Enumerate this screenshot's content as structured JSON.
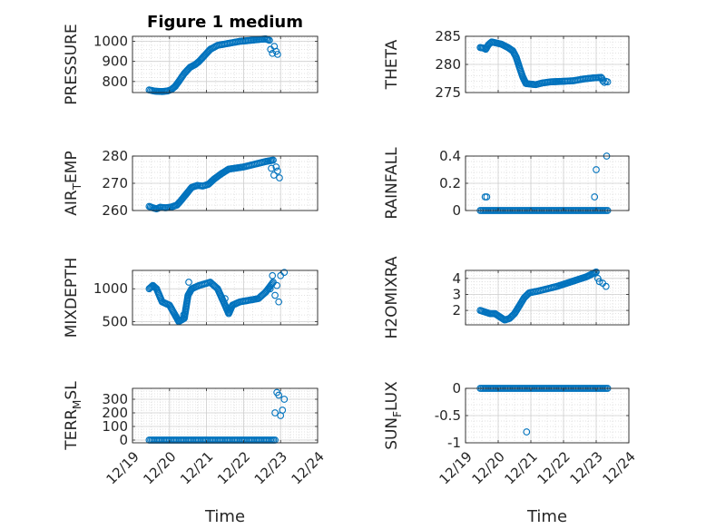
{
  "figure": {
    "title": "Figure 1 medium",
    "marker_color": "#0072BD"
  },
  "chart_data": [
    {
      "type": "scatter",
      "title": "Figure 1 medium",
      "ylabel_main": "PRESSURE",
      "ylabel_sub": "",
      "xlim": [
        0,
        5
      ],
      "ylim": [
        745,
        1025
      ],
      "yticks": [
        800,
        900,
        1000
      ],
      "ytick_labels": [
        "800",
        "900",
        "1000"
      ],
      "xticks": [
        0,
        1,
        2,
        3,
        4,
        5
      ],
      "xtick_labels": [
        "12/19",
        "12/20",
        "12/21",
        "12/22",
        "12/23",
        "12/24"
      ],
      "xlabel": "",
      "grid": true,
      "line": [
        [
          0.45,
          758
        ],
        [
          0.6,
          752
        ],
        [
          0.8,
          750
        ],
        [
          0.95,
          753
        ],
        [
          1.05,
          760
        ],
        [
          1.15,
          775
        ],
        [
          1.25,
          800
        ],
        [
          1.4,
          840
        ],
        [
          1.55,
          870
        ],
        [
          1.7,
          885
        ],
        [
          1.8,
          900
        ],
        [
          1.95,
          930
        ],
        [
          2.1,
          960
        ],
        [
          2.3,
          980
        ],
        [
          2.6,
          990
        ],
        [
          2.9,
          1000
        ],
        [
          3.2,
          1005
        ],
        [
          3.45,
          1010
        ],
        [
          3.6,
          1012
        ],
        [
          3.7,
          1005
        ]
      ],
      "extra": [
        [
          3.73,
          960
        ],
        [
          3.78,
          940
        ],
        [
          3.83,
          975
        ],
        [
          3.88,
          950
        ],
        [
          3.92,
          935
        ]
      ]
    },
    {
      "type": "scatter",
      "title": "",
      "ylabel_main": "THETA",
      "ylabel_sub": "",
      "xlim": [
        0,
        5
      ],
      "ylim": [
        275,
        285
      ],
      "yticks": [
        275,
        280,
        285
      ],
      "ytick_labels": [
        "275",
        "280",
        "285"
      ],
      "xticks": [
        0,
        1,
        2,
        3,
        4,
        5
      ],
      "xtick_labels": [
        "12/19",
        "12/20",
        "12/21",
        "12/22",
        "12/23",
        "12/24"
      ],
      "xlabel": "",
      "grid": true,
      "line": [
        [
          0.45,
          283.0
        ],
        [
          0.55,
          282.9
        ],
        [
          0.62,
          282.7
        ],
        [
          0.7,
          283.5
        ],
        [
          0.8,
          284.0
        ],
        [
          0.95,
          283.8
        ],
        [
          1.1,
          283.6
        ],
        [
          1.3,
          283.0
        ],
        [
          1.45,
          282.4
        ],
        [
          1.55,
          281.3
        ],
        [
          1.65,
          279.5
        ],
        [
          1.75,
          277.8
        ],
        [
          1.85,
          276.6
        ],
        [
          2.0,
          276.5
        ],
        [
          2.15,
          276.4
        ],
        [
          2.35,
          276.7
        ],
        [
          2.6,
          276.9
        ],
        [
          3.0,
          277.0
        ],
        [
          3.3,
          277.1
        ],
        [
          3.6,
          277.4
        ],
        [
          3.9,
          277.6
        ],
        [
          4.15,
          277.7
        ]
      ],
      "extra": [
        [
          4.18,
          277.5
        ],
        [
          4.2,
          277.1
        ],
        [
          4.25,
          276.8
        ],
        [
          4.3,
          277.0
        ],
        [
          4.35,
          276.9
        ]
      ]
    },
    {
      "type": "scatter",
      "title": "",
      "ylabel_main": "AIR",
      "ylabel_sub": "T",
      "ylabel_tail": "EMP",
      "xlim": [
        0,
        5
      ],
      "ylim": [
        260,
        280
      ],
      "yticks": [
        260,
        270,
        280
      ],
      "ytick_labels": [
        "260",
        "270",
        "280"
      ],
      "xticks": [
        0,
        1,
        2,
        3,
        4,
        5
      ],
      "xtick_labels": [
        "12/19",
        "12/20",
        "12/21",
        "12/22",
        "12/23",
        "12/24"
      ],
      "xlabel": "",
      "grid": true,
      "line": [
        [
          0.45,
          261.5
        ],
        [
          0.55,
          261.0
        ],
        [
          0.65,
          260.6
        ],
        [
          0.75,
          261.2
        ],
        [
          0.9,
          261.0
        ],
        [
          1.05,
          261.3
        ],
        [
          1.2,
          262.0
        ],
        [
          1.3,
          263.5
        ],
        [
          1.45,
          266.0
        ],
        [
          1.6,
          268.5
        ],
        [
          1.75,
          269.2
        ],
        [
          1.9,
          269.0
        ],
        [
          2.05,
          269.6
        ],
        [
          2.2,
          271.5
        ],
        [
          2.4,
          273.5
        ],
        [
          2.6,
          275.2
        ],
        [
          2.8,
          275.6
        ],
        [
          3.0,
          276.0
        ],
        [
          3.3,
          277.0
        ],
        [
          3.6,
          278.0
        ],
        [
          3.8,
          278.5
        ]
      ],
      "extra": [
        [
          3.75,
          275.5
        ],
        [
          3.82,
          273.0
        ],
        [
          3.88,
          276.0
        ],
        [
          3.92,
          274.5
        ],
        [
          3.97,
          272.0
        ]
      ]
    },
    {
      "type": "scatter",
      "title": "",
      "ylabel_main": "RAINFALL",
      "ylabel_sub": "",
      "xlim": [
        0,
        5
      ],
      "ylim": [
        0,
        0.4
      ],
      "yticks": [
        0,
        0.2,
        0.4
      ],
      "ytick_labels": [
        "0",
        "0.2",
        "0.4"
      ],
      "xticks": [
        0,
        1,
        2,
        3,
        4,
        5
      ],
      "xtick_labels": [
        "12/19",
        "12/20",
        "12/21",
        "12/22",
        "12/23",
        "12/24"
      ],
      "xlabel": "",
      "grid": true,
      "line": [
        [
          0.45,
          0
        ],
        [
          4.35,
          0
        ]
      ],
      "extra": [
        [
          0.6,
          0.1
        ],
        [
          0.65,
          0.1
        ],
        [
          3.95,
          0.1
        ],
        [
          4.0,
          0.3
        ],
        [
          4.32,
          0.4
        ]
      ]
    },
    {
      "type": "scatter",
      "title": "",
      "ylabel_main": "MIXDEPTH",
      "ylabel_sub": "",
      "xlim": [
        0,
        5
      ],
      "ylim": [
        450,
        1280
      ],
      "yticks": [
        500,
        1000
      ],
      "ytick_labels": [
        "500",
        "1000"
      ],
      "xticks": [
        0,
        1,
        2,
        3,
        4,
        5
      ],
      "xtick_labels": [
        "12/19",
        "12/20",
        "12/21",
        "12/22",
        "12/23",
        "12/24"
      ],
      "xlabel": "",
      "grid": true,
      "line": [
        [
          0.45,
          1000
        ],
        [
          0.55,
          1050
        ],
        [
          0.65,
          1000
        ],
        [
          0.8,
          800
        ],
        [
          1.0,
          750
        ],
        [
          1.15,
          600
        ],
        [
          1.25,
          500
        ],
        [
          1.4,
          550
        ],
        [
          1.5,
          900
        ],
        [
          1.6,
          1000
        ],
        [
          1.8,
          1050
        ],
        [
          2.1,
          1100
        ],
        [
          2.3,
          1000
        ],
        [
          2.5,
          750
        ],
        [
          2.6,
          620
        ],
        [
          2.7,
          750
        ],
        [
          2.9,
          800
        ],
        [
          3.2,
          830
        ],
        [
          3.4,
          850
        ],
        [
          3.6,
          950
        ],
        [
          3.8,
          1100
        ]
      ],
      "extra": [
        [
          1.38,
          600
        ],
        [
          1.52,
          1100
        ],
        [
          2.5,
          850
        ],
        [
          3.72,
          1000
        ],
        [
          3.78,
          1200
        ],
        [
          3.85,
          900
        ],
        [
          3.9,
          1050
        ],
        [
          3.95,
          800
        ],
        [
          4.0,
          1200
        ],
        [
          4.1,
          1250
        ]
      ]
    },
    {
      "type": "scatter",
      "title": "",
      "ylabel_main": "H2OMIXRA",
      "ylabel_sub": "",
      "xlim": [
        0,
        5
      ],
      "ylim": [
        1.1,
        4.5
      ],
      "yticks": [
        2,
        3,
        4
      ],
      "ytick_labels": [
        "2",
        "3",
        "4"
      ],
      "xticks": [
        0,
        1,
        2,
        3,
        4,
        5
      ],
      "xtick_labels": [
        "12/19",
        "12/20",
        "12/21",
        "12/22",
        "12/23",
        "12/24"
      ],
      "xlabel": "",
      "grid": true,
      "line": [
        [
          0.45,
          2.0
        ],
        [
          0.6,
          1.9
        ],
        [
          0.75,
          1.8
        ],
        [
          0.9,
          1.8
        ],
        [
          1.05,
          1.6
        ],
        [
          1.2,
          1.4
        ],
        [
          1.35,
          1.5
        ],
        [
          1.5,
          1.8
        ],
        [
          1.65,
          2.3
        ],
        [
          1.8,
          2.8
        ],
        [
          1.95,
          3.1
        ],
        [
          2.2,
          3.2
        ],
        [
          2.5,
          3.35
        ],
        [
          2.8,
          3.5
        ],
        [
          3.1,
          3.7
        ],
        [
          3.4,
          3.9
        ],
        [
          3.7,
          4.1
        ],
        [
          3.9,
          4.3
        ],
        [
          4.0,
          4.4
        ]
      ],
      "extra": [
        [
          4.05,
          4.0
        ],
        [
          4.1,
          3.8
        ],
        [
          4.2,
          3.7
        ],
        [
          4.3,
          3.5
        ]
      ]
    },
    {
      "type": "scatter",
      "title": "",
      "ylabel_main": "TERR",
      "ylabel_sub": "M",
      "ylabel_tail": "SL",
      "xlim": [
        0,
        5
      ],
      "ylim": [
        -20,
        380
      ],
      "yticks": [
        0,
        100,
        200,
        300
      ],
      "ytick_labels": [
        "0",
        "100",
        "200",
        "300"
      ],
      "xticks": [
        0,
        1,
        2,
        3,
        4,
        5
      ],
      "xtick_labels": [
        "12/19",
        "12/20",
        "12/21",
        "12/22",
        "12/23",
        "12/24"
      ],
      "xlabel": "Time",
      "grid": true,
      "line": [
        [
          0.45,
          0
        ],
        [
          3.85,
          0
        ]
      ],
      "extra": [
        [
          3.85,
          200
        ],
        [
          3.9,
          350
        ],
        [
          3.95,
          330
        ],
        [
          4.0,
          180
        ],
        [
          4.05,
          220
        ],
        [
          4.1,
          300
        ]
      ]
    },
    {
      "type": "scatter",
      "title": "",
      "ylabel_main": "SUN",
      "ylabel_sub": "F",
      "ylabel_tail": "LUX",
      "xlim": [
        0,
        5
      ],
      "ylim": [
        -1,
        0
      ],
      "yticks": [
        -1,
        -0.5,
        0
      ],
      "ytick_labels": [
        "-1",
        "-0.5",
        "0"
      ],
      "xticks": [
        0,
        1,
        2,
        3,
        4,
        5
      ],
      "xtick_labels": [
        "12/19",
        "12/20",
        "12/21",
        "12/22",
        "12/23",
        "12/24"
      ],
      "xlabel": "Time",
      "grid": true,
      "line": [
        [
          0.45,
          0
        ],
        [
          4.35,
          0
        ]
      ],
      "extra": [
        [
          1.87,
          -0.8
        ]
      ]
    }
  ]
}
